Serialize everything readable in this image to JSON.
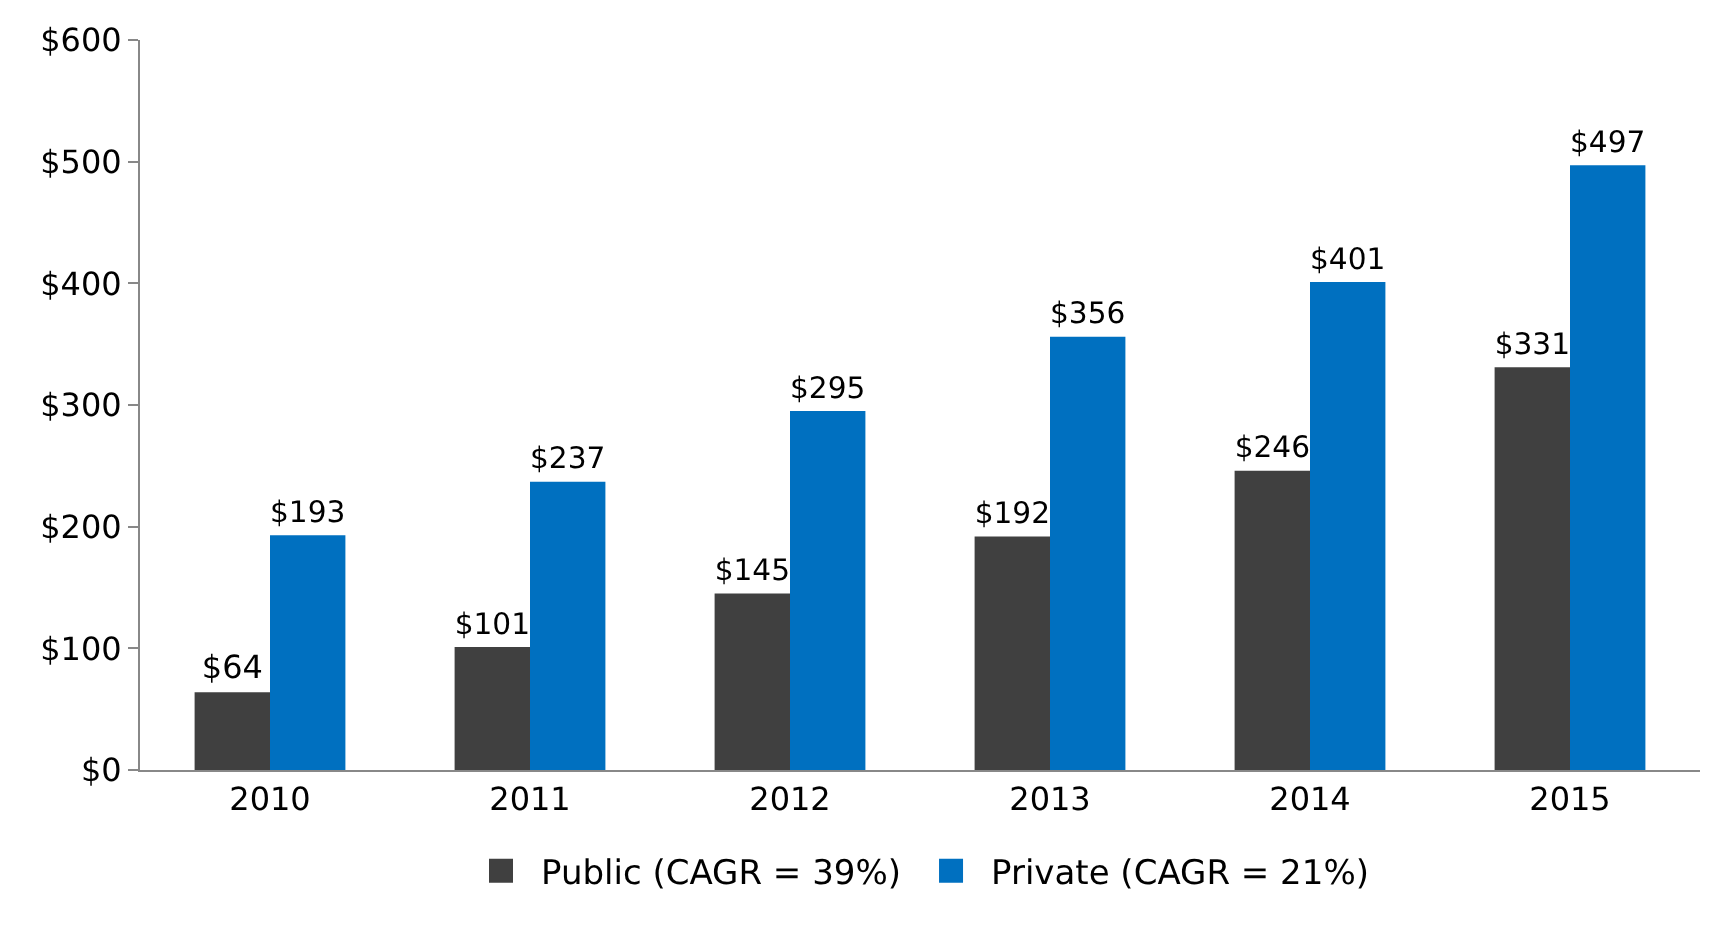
{
  "chart_data": {
    "type": "bar",
    "categories": [
      "2010",
      "2011",
      "2012",
      "2013",
      "2014",
      "2015"
    ],
    "series": [
      {
        "name": "Public (CAGR = 39%)",
        "color": "#404040",
        "values": [
          64,
          101,
          145,
          192,
          246,
          331
        ],
        "value_labels": [
          "$64",
          "$101",
          "$145",
          "$192",
          "$246",
          "$331"
        ]
      },
      {
        "name": "Private (CAGR = 21%)",
        "color": "#0070c0",
        "values": [
          193,
          237,
          295,
          356,
          401,
          497
        ],
        "value_labels": [
          "$193",
          "$237",
          "$295",
          "$356",
          "$401",
          "$497"
        ]
      }
    ],
    "ylim": [
      0,
      600
    ],
    "yticks": [
      {
        "value": 0,
        "label": "$0"
      },
      {
        "value": 100,
        "label": "$100"
      },
      {
        "value": 200,
        "label": "$200"
      },
      {
        "value": 300,
        "label": "$300"
      },
      {
        "value": 400,
        "label": "$400"
      },
      {
        "value": 500,
        "label": "$500"
      },
      {
        "value": 600,
        "label": "$600"
      }
    ],
    "legend": "bottom"
  }
}
